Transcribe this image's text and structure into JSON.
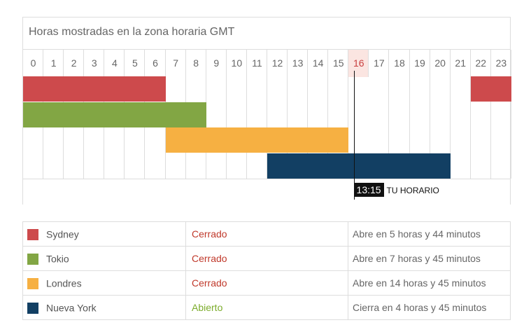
{
  "title": "Horas mostradas en la zona horaria GMT",
  "hours": [
    "0",
    "1",
    "2",
    "3",
    "4",
    "5",
    "6",
    "7",
    "8",
    "9",
    "10",
    "11",
    "12",
    "13",
    "14",
    "15",
    "16",
    "17",
    "18",
    "19",
    "20",
    "21",
    "22",
    "23"
  ],
  "current_hour": "16",
  "now": {
    "time": "13:15",
    "caption": "TU HORARIO",
    "fraction_of_hour": 0.25
  },
  "colors": {
    "sydney": "#cd4a4c",
    "tokio": "#82a644",
    "londres": "#f6b042",
    "nueva_york": "#123f63",
    "closed": "#c0392b",
    "open": "#7cac2c"
  },
  "sessions": [
    {
      "row": 0,
      "color": "#cd4a4c",
      "start_hour": 0,
      "end_hour": 7
    },
    {
      "row": 0,
      "color": "#cd4a4c",
      "start_hour": 22,
      "end_hour": 24
    },
    {
      "row": 1,
      "color": "#82a644",
      "start_hour": 0,
      "end_hour": 9
    },
    {
      "row": 2,
      "color": "#f6b042",
      "start_hour": 7,
      "end_hour": 16
    },
    {
      "row": 3,
      "color": "#123f63",
      "start_hour": 12,
      "end_hour": 21
    }
  ],
  "markets": [
    {
      "name": "Sydney",
      "status": "Cerrado",
      "status_type": "closed",
      "color": "#cd4a4c",
      "info": "Abre en 5 horas y 44 minutos"
    },
    {
      "name": "Tokio",
      "status": "Cerrado",
      "status_type": "closed",
      "color": "#82a644",
      "info": "Abre en 7 horas y 45 minutos"
    },
    {
      "name": "Londres",
      "status": "Cerrado",
      "status_type": "closed",
      "color": "#f6b042",
      "info": "Abre en 14 horas y 45 minutos"
    },
    {
      "name": "Nueva York",
      "status": "Abierto",
      "status_type": "open",
      "color": "#123f63",
      "info": "Cierra en 4 horas y 45 minutos"
    }
  ]
}
